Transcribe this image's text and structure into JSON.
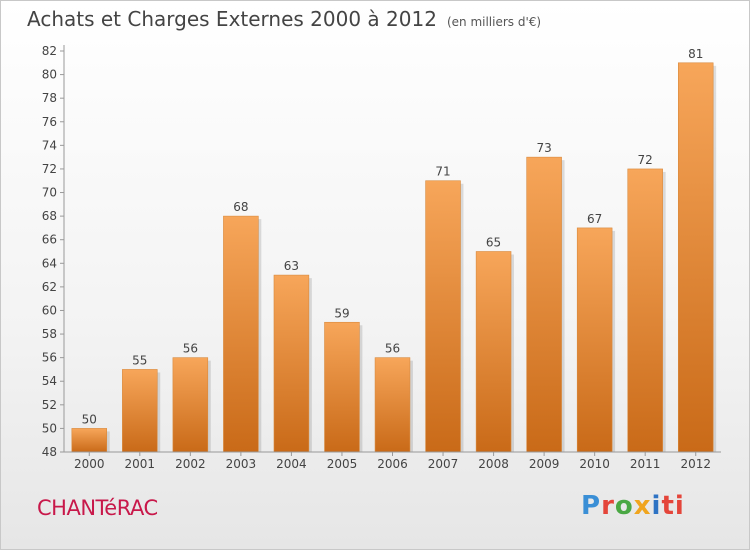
{
  "header": {
    "title": "Achats et Charges Externes 2000 à 2012",
    "subtitle": "(en milliers d'€)"
  },
  "footer": {
    "place": "CHANTéRAC",
    "brand": [
      "P",
      "r",
      "o",
      "x",
      "i",
      "ti"
    ]
  },
  "colors": {
    "bar_light": "#f7a65a",
    "bar_dark": "#c96a18",
    "axis": "#999999",
    "text": "#444444"
  },
  "chart_data": {
    "type": "bar",
    "title": "Achats et Charges Externes 2000 à 2012",
    "subtitle": "(en milliers d'€)",
    "categories": [
      "2000",
      "2001",
      "2002",
      "2003",
      "2004",
      "2005",
      "2006",
      "2007",
      "2008",
      "2009",
      "2010",
      "2011",
      "2012"
    ],
    "values": [
      50,
      55,
      56,
      68,
      63,
      59,
      56,
      71,
      65,
      73,
      67,
      72,
      81
    ],
    "ylim": [
      48,
      82
    ],
    "yticks": [
      48,
      50,
      52,
      54,
      56,
      58,
      60,
      62,
      64,
      66,
      68,
      70,
      72,
      74,
      76,
      78,
      80,
      82
    ],
    "grid": false,
    "data_labels": true
  }
}
